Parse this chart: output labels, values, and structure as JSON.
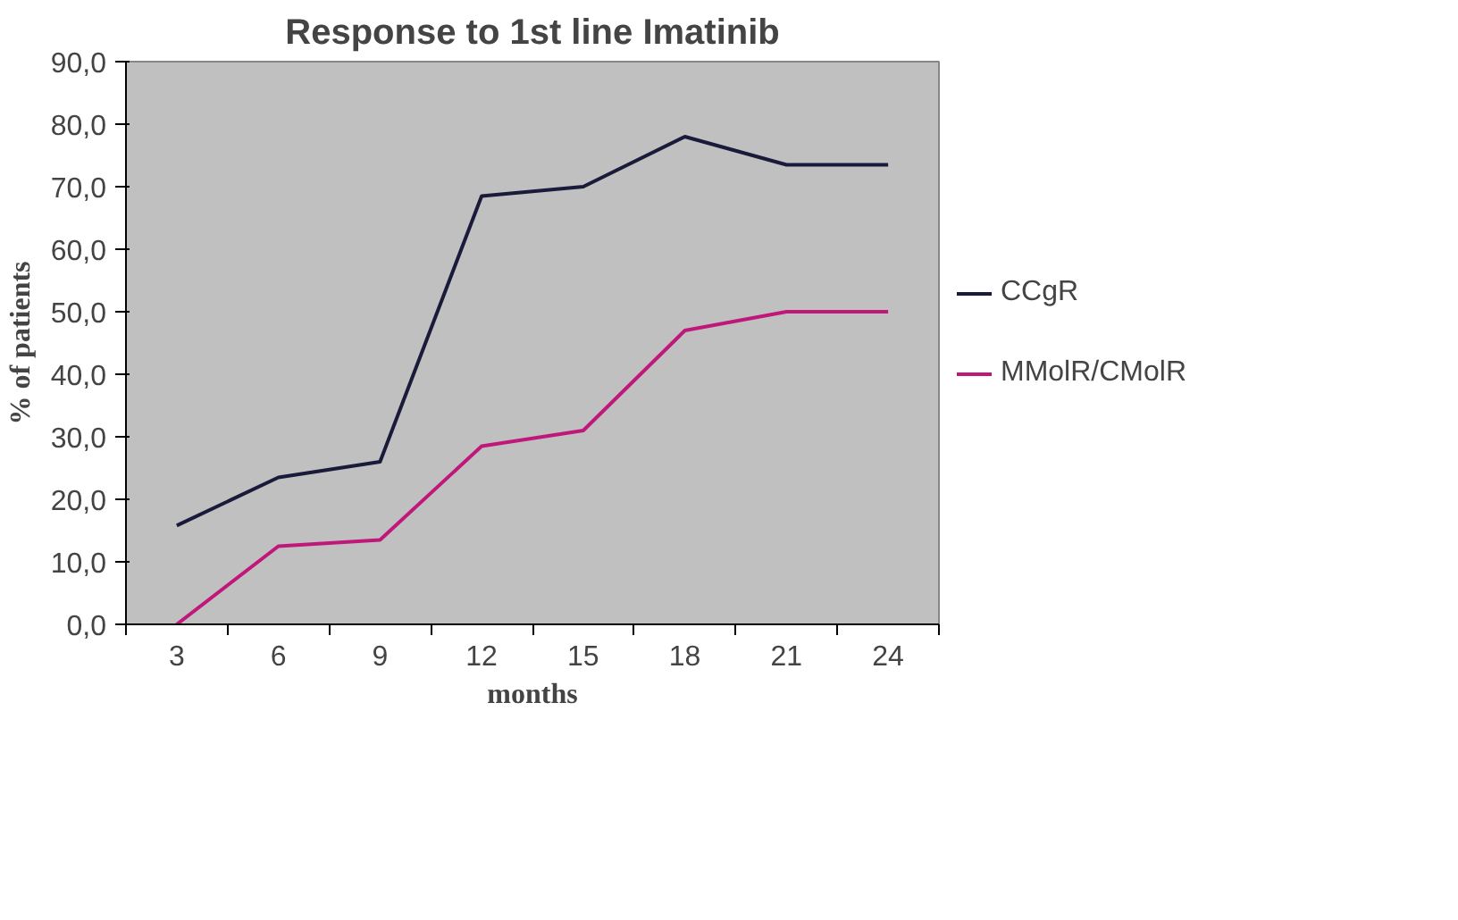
{
  "chart_data": {
    "type": "line",
    "title": "Response to 1st line Imatinib",
    "xlabel": "months",
    "ylabel": "% of patients",
    "categories": [
      "3",
      "6",
      "9",
      "12",
      "15",
      "18",
      "21",
      "24"
    ],
    "series": [
      {
        "name": "CCgR",
        "color": "#1a1a3a",
        "values": [
          15.8,
          23.5,
          26.0,
          68.5,
          70.0,
          78.0,
          73.5,
          73.5
        ]
      },
      {
        "name": "MMolR/CMolR",
        "color": "#c0187a",
        "values": [
          0.0,
          12.5,
          13.5,
          28.5,
          31.0,
          47.0,
          50.0,
          50.0
        ]
      }
    ],
    "ylim": [
      0,
      90
    ],
    "yticks": [
      {
        "value": 0,
        "label": "0,0"
      },
      {
        "value": 10,
        "label": "10,0"
      },
      {
        "value": 20,
        "label": "20,0"
      },
      {
        "value": 30,
        "label": "30,0"
      },
      {
        "value": 40,
        "label": "40,0"
      },
      {
        "value": 50,
        "label": "50,0"
      },
      {
        "value": 60,
        "label": "60,0"
      },
      {
        "value": 70,
        "label": "70,0"
      },
      {
        "value": 80,
        "label": "80,0"
      },
      {
        "value": 90,
        "label": "90,0"
      }
    ],
    "grid": false,
    "legend": "right",
    "marker": "none",
    "line_style": "solid"
  }
}
